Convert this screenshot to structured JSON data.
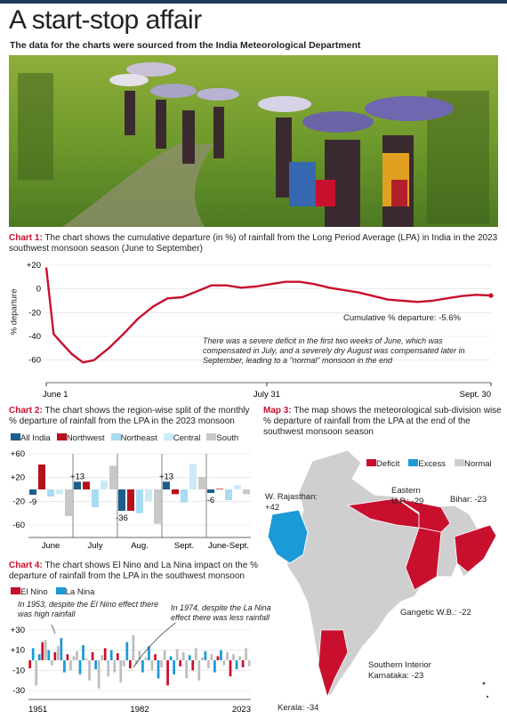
{
  "header": {
    "title": "A start-stop affair",
    "subtitle": "The data for the charts were sourced from the India Meteorological Department"
  },
  "colors": {
    "deficit": "#c8102e",
    "excess": "#1a9ad6",
    "normal": "#cfcfcf",
    "all_india": "#1b5e8c",
    "northwest": "#b5121b",
    "northeast": "#a8dcf2",
    "central": "#cdeaf7",
    "south": "#c8c8c8"
  },
  "chart1": {
    "label": "Chart 1:",
    "caption": "The chart shows the cumulative departure (in %) of rainfall from the Long Period Average (LPA) in India in the 2023 southwest monsoon season (June to September)",
    "ylabel": "% departure",
    "annotation": "Cumulative % departure: -5.6%",
    "note": "There was a severe deficit in the first two weeks of June, which was compensated in July, and a severely dry August was compensated later in September, leading to a \"normal\" monsoon in the end"
  },
  "chart2": {
    "label": "Chart 2:",
    "caption": "The chart shows the region-wise split of the monthly % departure of rainfall from the LPA in the 2023 monsoon"
  },
  "chart4": {
    "label": "Chart 4:",
    "caption": "The chart shows El Nino and La Nina impact on the % departure of rainfall from the LPA in the southwest monsoon",
    "note1": "In 1953, despite the El Nino effect there was high rainfall",
    "note2": "In 1974, despite the La Nina effect there was less rainfall"
  },
  "map3": {
    "label": "Map 3:",
    "caption": "The map shows the meteorological sub-division wise % departure of rainfall from the LPA at the end of the southwest monsoon season",
    "legend": [
      "Deficit",
      "Excess",
      "Normal"
    ],
    "callouts": {
      "rajasthan": "W. Rajasthan: +42",
      "eastern_up": "Eastern U.P.: -29",
      "bihar": "Bihar: -23",
      "gangetic": "Gangetic W.B.: -22",
      "karnataka": "Southern Interior Karnataka: -23",
      "kerala": "Kerala: -34"
    }
  },
  "chart_data": [
    {
      "type": "line",
      "title": "",
      "ylabel": "% departure",
      "ylim": [
        -70,
        20
      ],
      "yticks": [
        "+20",
        "0",
        "-20",
        "-40",
        "-60"
      ],
      "xticks": [
        "June 1",
        "July 31",
        "Sept. 30"
      ],
      "x": [
        1,
        2,
        3,
        5,
        8,
        11,
        14,
        18,
        22,
        26,
        30,
        34,
        38,
        42,
        46,
        50,
        54,
        58,
        62,
        66,
        70,
        74,
        78,
        82,
        86,
        90,
        94,
        98,
        102,
        106,
        110,
        114,
        118,
        122
      ],
      "values": [
        18,
        -10,
        -38,
        -45,
        -55,
        -62,
        -60,
        -50,
        -38,
        -25,
        -15,
        -8,
        -7,
        -2,
        3,
        3,
        1,
        2,
        4,
        6,
        6,
        4,
        1,
        -1,
        -3,
        -6,
        -9,
        -10,
        -11,
        -10,
        -8,
        -6,
        -5,
        -5.6
      ],
      "series": [
        {
          "name": "Cumulative % departure: -5.6%"
        }
      ]
    },
    {
      "type": "bar",
      "categories": [
        "June",
        "July",
        "Aug.",
        "Sept.",
        "June-Sept."
      ],
      "ylim": [
        -60,
        60
      ],
      "yticks": [
        "+60",
        "+20",
        "-20",
        "-60"
      ],
      "series": [
        {
          "name": "All India",
          "values": [
            -9,
            13,
            -36,
            13,
            -6
          ]
        },
        {
          "name": "Northwest",
          "values": [
            42,
            13,
            -36,
            -8,
            1
          ]
        },
        {
          "name": "Northeast",
          "values": [
            -12,
            -30,
            -40,
            -22,
            -18
          ]
        },
        {
          "name": "Central",
          "values": [
            -8,
            15,
            -20,
            43,
            7
          ]
        },
        {
          "name": "South",
          "values": [
            -45,
            40,
            -58,
            21,
            -8
          ]
        }
      ],
      "data_labels": [
        "-9",
        "+13",
        "-36",
        "+13",
        "-6"
      ]
    },
    {
      "type": "bar",
      "xticks": [
        "1951",
        "1982",
        "2023"
      ],
      "ylim": [
        -30,
        30
      ],
      "yticks": [
        "+30",
        "+10",
        "-10",
        "-30"
      ],
      "series": [
        {
          "name": "El Nino"
        },
        {
          "name": "La Nina"
        }
      ]
    }
  ]
}
